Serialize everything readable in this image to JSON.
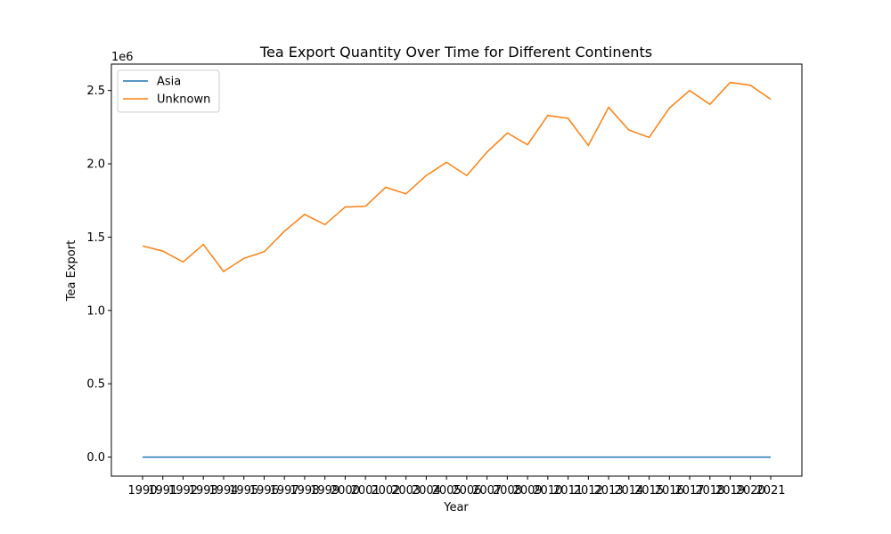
{
  "chart_data": {
    "type": "line",
    "title": "Tea Export Quantity Over Time for Different Continents",
    "xlabel": "Year",
    "ylabel": "Tea Export",
    "y_offset_label": "1e6",
    "x": [
      "1990",
      "1991",
      "1992",
      "1993",
      "1994",
      "1995",
      "1996",
      "1997",
      "1998",
      "1999",
      "2000",
      "2001",
      "2002",
      "2003",
      "2004",
      "2005",
      "2006",
      "2007",
      "2008",
      "2009",
      "2010",
      "2011",
      "2012",
      "2013",
      "2014",
      "2015",
      "2016",
      "2017",
      "2018",
      "2019",
      "2020",
      "2021"
    ],
    "series": [
      {
        "name": "Asia",
        "color": "#1f77b4",
        "values": [
          0,
          0,
          0,
          0,
          0,
          0,
          0,
          0,
          0,
          0,
          0,
          0,
          0,
          0,
          0,
          0,
          0,
          0,
          0,
          0,
          0,
          0,
          0,
          0,
          0,
          0,
          0,
          0,
          0,
          0,
          0,
          0
        ]
      },
      {
        "name": "Unknown",
        "color": "#ff7f0e",
        "values": [
          1440000,
          1405000,
          1330000,
          1450000,
          1265000,
          1355000,
          1400000,
          1540000,
          1655000,
          1585000,
          1705000,
          1710000,
          1840000,
          1795000,
          1920000,
          2010000,
          1920000,
          2080000,
          2210000,
          2130000,
          2330000,
          2310000,
          2125000,
          2385000,
          2230000,
          2180000,
          2380000,
          2500000,
          2405000,
          2555000,
          2535000,
          2440000
        ]
      }
    ],
    "ylim": [
      -130000,
      2680000
    ],
    "yticks": [
      0,
      500000,
      1000000,
      1500000,
      2000000,
      2500000
    ],
    "ytick_labels": [
      "0.0",
      "0.5",
      "1.0",
      "1.5",
      "2.0",
      "2.5"
    ],
    "grid": false,
    "legend_position": "upper-left"
  }
}
